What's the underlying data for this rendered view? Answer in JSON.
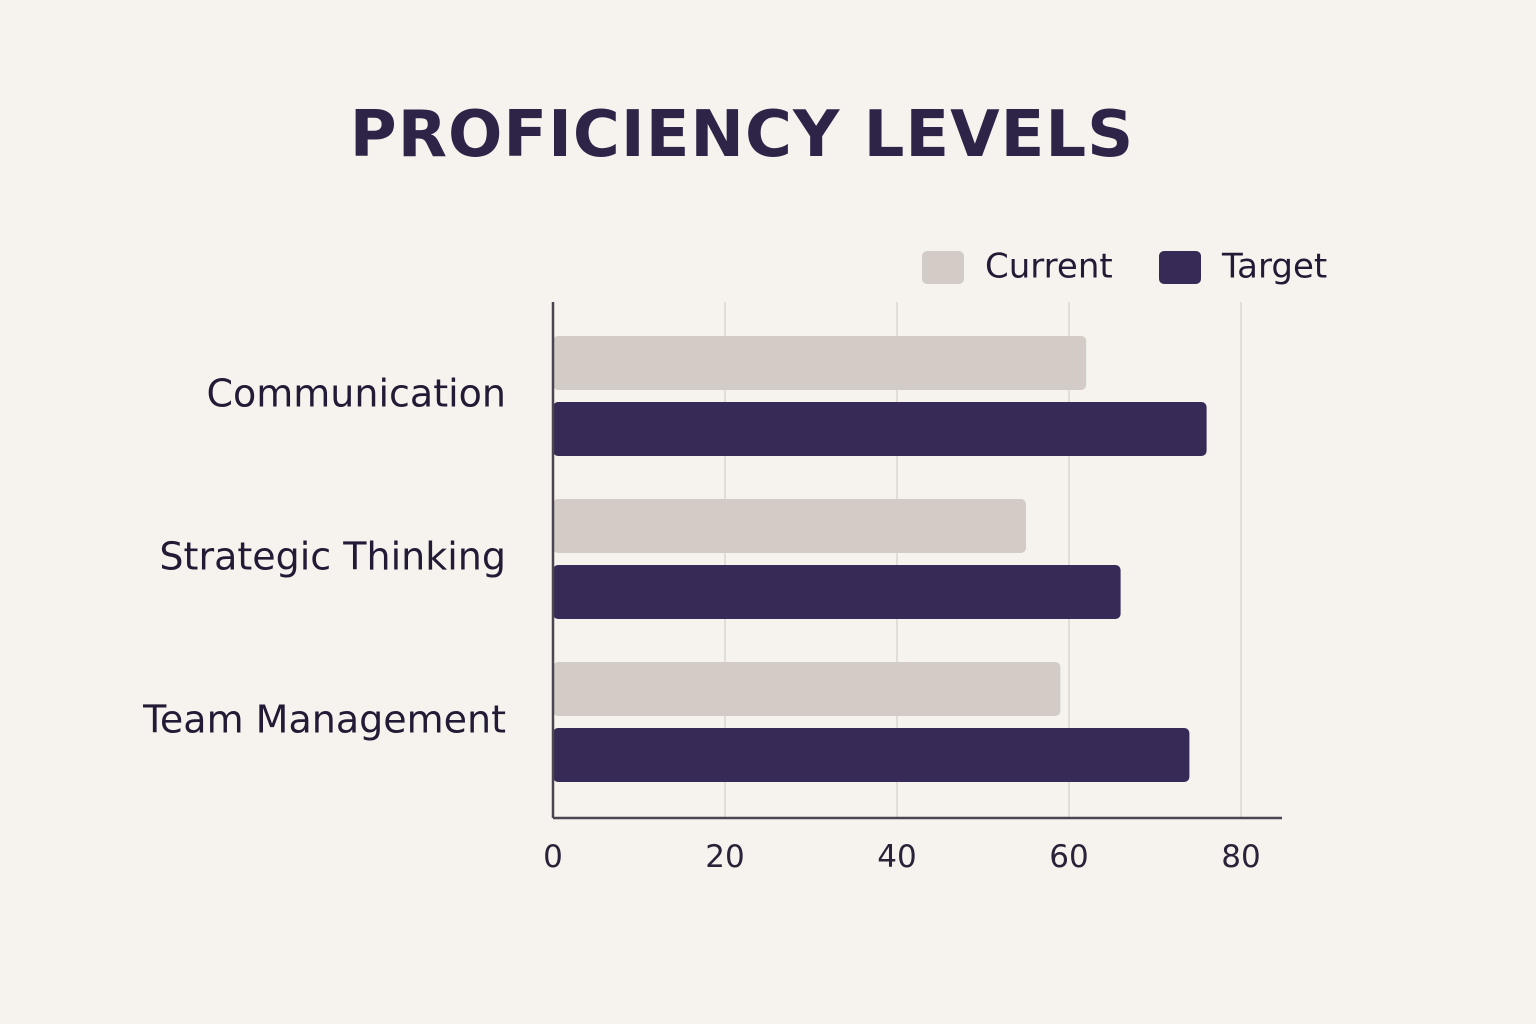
{
  "chart_data": {
    "type": "bar",
    "orientation": "horizontal",
    "title": "PROFICIENCY LEVELS",
    "categories": [
      "Communication",
      "Strategic Thinking",
      "Team Management"
    ],
    "series": [
      {
        "name": "Current",
        "values": [
          62,
          55,
          59
        ],
        "color": "#d3ccc6"
      },
      {
        "name": "Target",
        "values": [
          76,
          66,
          74
        ],
        "color": "#382a56"
      }
    ],
    "xticks": [
      0,
      20,
      40,
      60,
      80
    ],
    "xlim": [
      0,
      85
    ],
    "xlabel": "",
    "ylabel": "",
    "grid": "vertical",
    "legend_position": "top-right"
  }
}
